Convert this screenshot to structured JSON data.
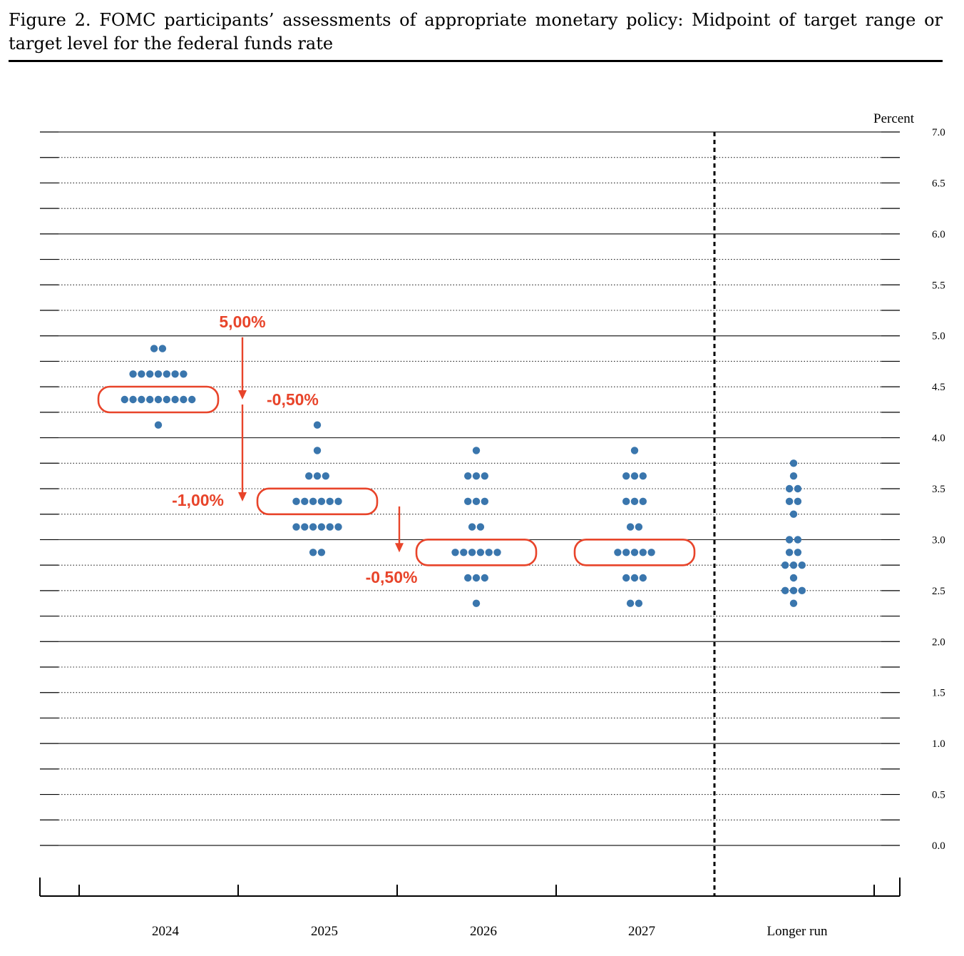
{
  "figure": {
    "title": "Figure 2.  FOMC participants’ assessments of appropriate monetary policy:  Midpoint of target range or target level for the federal funds rate"
  },
  "chart_data": {
    "type": "scatter",
    "title": "Figure 2.  FOMC participants’ assessments of appropriate monetary policy:  Midpoint of target range or target level for the federal funds rate",
    "ylabel": "Percent",
    "categories": [
      "2024",
      "2025",
      "2026",
      "2027",
      "Longer run"
    ],
    "ylim": [
      0,
      7
    ],
    "yticks": [
      "0.0",
      "0.5",
      "1.0",
      "1.5",
      "2.0",
      "2.5",
      "3.0",
      "3.5",
      "4.0",
      "4.5",
      "5.0",
      "5.5",
      "6.0",
      "6.5",
      "7.0"
    ],
    "dot_color": "#3a76ad",
    "series": [
      {
        "category": "2024",
        "dots": [
          {
            "y": 4.875,
            "count": 2
          },
          {
            "y": 4.625,
            "count": 7
          },
          {
            "y": 4.375,
            "count": 9
          },
          {
            "y": 4.125,
            "count": 1
          }
        ]
      },
      {
        "category": "2025",
        "dots": [
          {
            "y": 4.125,
            "count": 1
          },
          {
            "y": 3.875,
            "count": 1
          },
          {
            "y": 3.625,
            "count": 3
          },
          {
            "y": 3.375,
            "count": 6
          },
          {
            "y": 3.125,
            "count": 6
          },
          {
            "y": 2.875,
            "count": 2
          }
        ]
      },
      {
        "category": "2026",
        "dots": [
          {
            "y": 3.875,
            "count": 1
          },
          {
            "y": 3.625,
            "count": 3
          },
          {
            "y": 3.375,
            "count": 3
          },
          {
            "y": 3.125,
            "count": 2
          },
          {
            "y": 2.875,
            "count": 6
          },
          {
            "y": 2.625,
            "count": 3
          },
          {
            "y": 2.375,
            "count": 1
          }
        ]
      },
      {
        "category": "2027",
        "dots": [
          {
            "y": 3.875,
            "count": 1
          },
          {
            "y": 3.625,
            "count": 3
          },
          {
            "y": 3.375,
            "count": 3
          },
          {
            "y": 3.125,
            "count": 2
          },
          {
            "y": 2.875,
            "count": 5
          },
          {
            "y": 2.625,
            "count": 3
          },
          {
            "y": 2.375,
            "count": 2
          }
        ]
      },
      {
        "category": "Longer run",
        "dots": [
          {
            "y": 3.75,
            "count": 1
          },
          {
            "y": 3.625,
            "count": 1
          },
          {
            "y": 3.5,
            "count": 2
          },
          {
            "y": 3.375,
            "count": 2
          },
          {
            "y": 3.25,
            "count": 1
          },
          {
            "y": 3.0,
            "count": 2
          },
          {
            "y": 2.875,
            "count": 2
          },
          {
            "y": 2.75,
            "count": 3
          },
          {
            "y": 2.625,
            "count": 1
          },
          {
            "y": 2.5,
            "count": 3
          },
          {
            "y": 2.375,
            "count": 1
          }
        ]
      }
    ],
    "annotations": {
      "color": "#e8442a",
      "highlights": [
        {
          "category": "2024",
          "y": 4.375
        },
        {
          "category": "2025",
          "y": 3.375
        },
        {
          "category": "2026",
          "y": 2.875
        },
        {
          "category": "2027",
          "y": 2.875
        }
      ],
      "changes": [
        {
          "label": "5,00%",
          "from": 5.0,
          "to": 4.375
        },
        {
          "label": "-1,00%",
          "from": 4.375,
          "to": 3.375
        },
        {
          "label": "-0,50%",
          "from": 3.375,
          "to": 2.875
        }
      ],
      "side_label": "-0,50%"
    }
  }
}
